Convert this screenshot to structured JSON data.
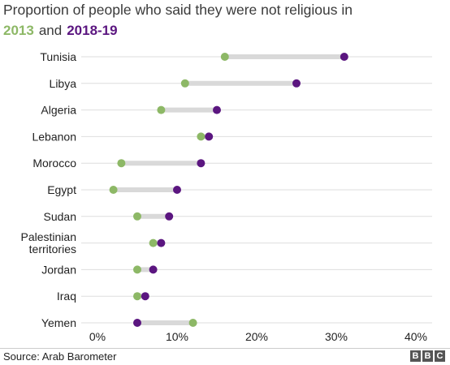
{
  "title": "Proportion of people who said they were not religious in",
  "legend": {
    "label_2013": "2013",
    "joiner": "and",
    "label_2018": "2018-19"
  },
  "colors": {
    "color_2013": "#8db866",
    "color_2018": "#5b1680",
    "connector": "#d9d9d9",
    "gridline": "#dedede"
  },
  "source": "Source: Arab Barometer",
  "logo_text": "BBC",
  "logo_letters": [
    "B",
    "B",
    "C"
  ],
  "chart_data": {
    "type": "dumbbell",
    "categories": [
      "Tunisia",
      "Libya",
      "Algeria",
      "Lebanon",
      "Morocco",
      "Egypt",
      "Sudan",
      "Palestinian territories",
      "Jordan",
      "Iraq",
      "Yemen"
    ],
    "category_lines": [
      [
        "Tunisia"
      ],
      [
        "Libya"
      ],
      [
        "Algeria"
      ],
      [
        "Lebanon"
      ],
      [
        "Morocco"
      ],
      [
        "Egypt"
      ],
      [
        "Sudan"
      ],
      [
        "Palestinian",
        "territories"
      ],
      [
        "Jordan"
      ],
      [
        "Iraq"
      ],
      [
        "Yemen"
      ]
    ],
    "series": [
      {
        "name": "2013",
        "values": [
          16,
          11,
          8,
          13,
          3,
          2,
          5,
          7,
          5,
          5,
          12
        ]
      },
      {
        "name": "2018-19",
        "values": [
          31,
          25,
          15,
          14,
          13,
          10,
          9,
          8,
          7,
          6,
          5
        ]
      }
    ],
    "xlim": [
      0,
      40
    ],
    "xticks": [
      0,
      10,
      20,
      30,
      40
    ],
    "xtick_labels": [
      "0%",
      "10%",
      "20%",
      "30%",
      "40%"
    ],
    "grid": true
  }
}
